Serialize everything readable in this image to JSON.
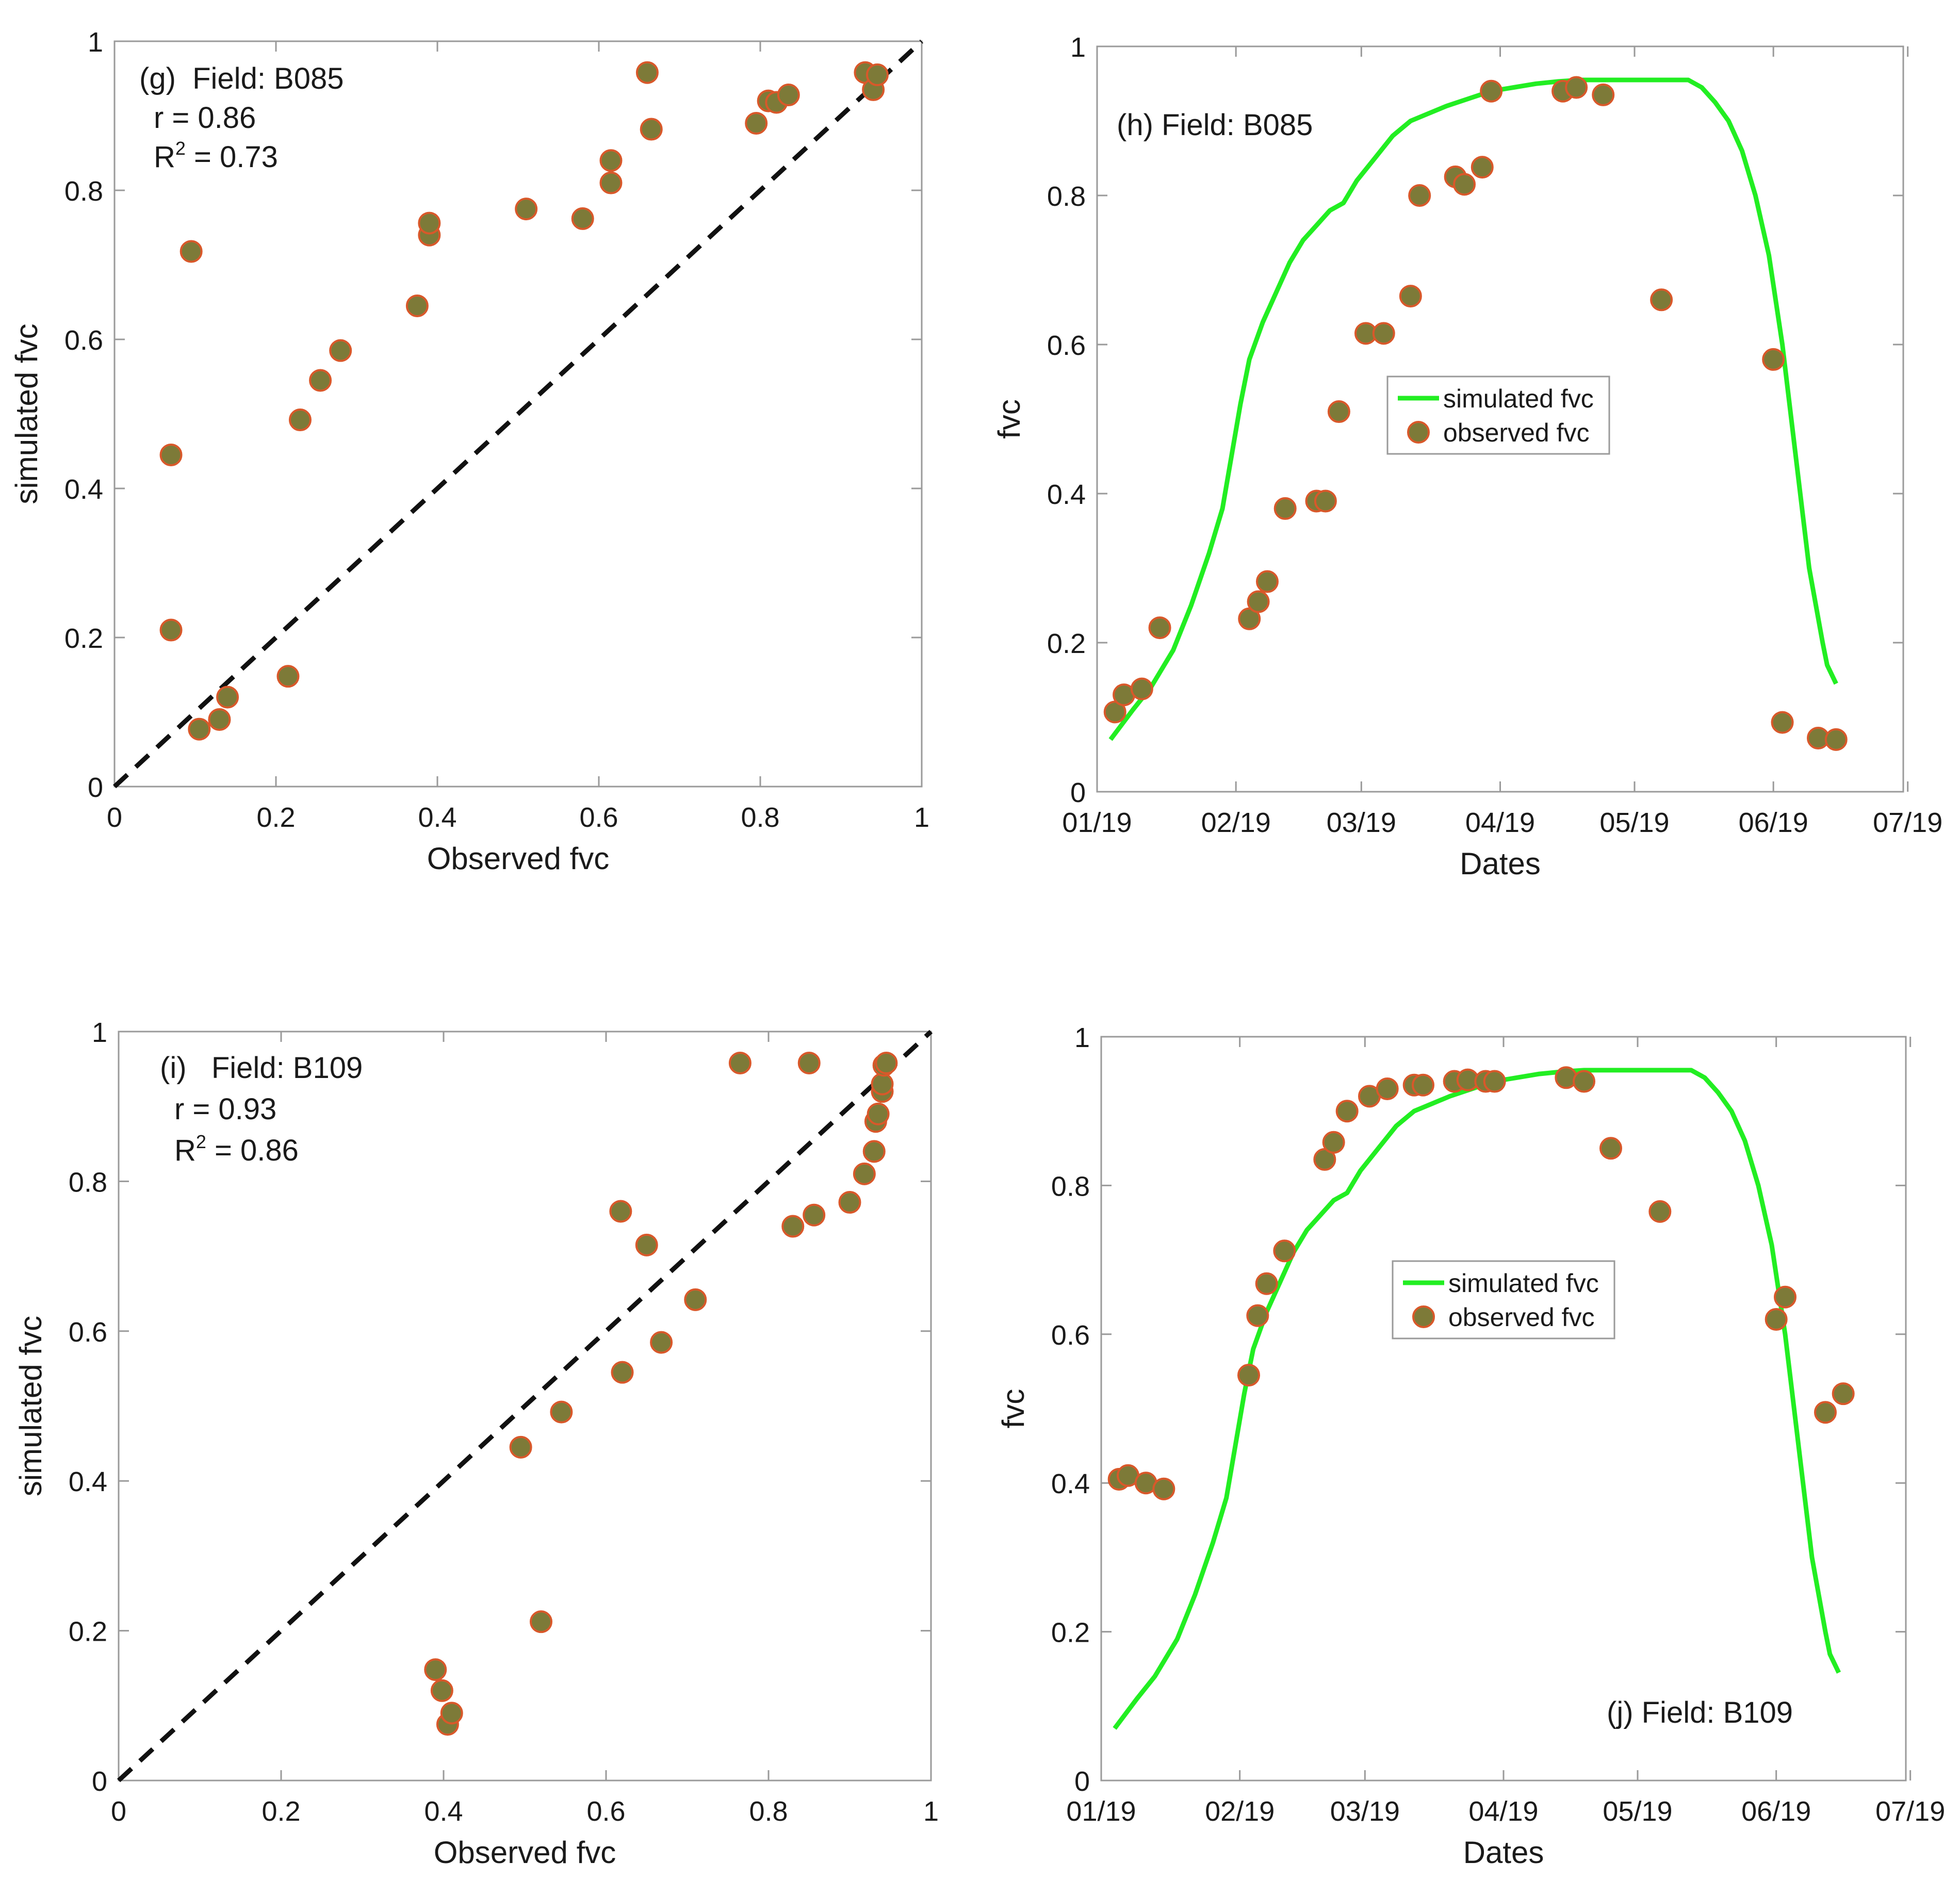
{
  "colors": {
    "marker_fill": "#7d7a38",
    "marker_edge": "#d9582a",
    "sim_line": "#22ee22",
    "one_to_one": "#111111",
    "axis": "#9a9a9a"
  },
  "chart_data": [
    {
      "id": "g",
      "type": "scatter",
      "annotation": {
        "panel_field": "(g)  Field: B085",
        "r_text": "r = 0.86",
        "r2_prefix": "R",
        "r2_sup": "2",
        "r2_value": " = 0.73"
      },
      "xlabel": "Observed fvc",
      "ylabel": "simulated fvc",
      "xlim": [
        0,
        1
      ],
      "ylim": [
        0,
        1
      ],
      "xticks": [
        0,
        0.2,
        0.4,
        0.6,
        0.8,
        1
      ],
      "xtick_labels": [
        "0",
        "0.2",
        "0.4",
        "0.6",
        "0.8",
        "1"
      ],
      "yticks": [
        0,
        0.2,
        0.4,
        0.6,
        0.8,
        1
      ],
      "ytick_labels": [
        "0",
        "0.2",
        "0.4",
        "0.6",
        "0.8",
        "1"
      ],
      "one_to_one_line": true,
      "points": [
        [
          0.07,
          0.21
        ],
        [
          0.07,
          0.445
        ],
        [
          0.095,
          0.718
        ],
        [
          0.105,
          0.077
        ],
        [
          0.13,
          0.09
        ],
        [
          0.14,
          0.12
        ],
        [
          0.215,
          0.148
        ],
        [
          0.23,
          0.492
        ],
        [
          0.255,
          0.545
        ],
        [
          0.28,
          0.585
        ],
        [
          0.375,
          0.645
        ],
        [
          0.39,
          0.74
        ],
        [
          0.39,
          0.756
        ],
        [
          0.51,
          0.775
        ],
        [
          0.58,
          0.762
        ],
        [
          0.615,
          0.81
        ],
        [
          0.615,
          0.84
        ],
        [
          0.66,
          0.958
        ],
        [
          0.665,
          0.882
        ],
        [
          0.795,
          0.89
        ],
        [
          0.81,
          0.92
        ],
        [
          0.82,
          0.918
        ],
        [
          0.835,
          0.928
        ],
        [
          0.93,
          0.958
        ],
        [
          0.94,
          0.935
        ],
        [
          0.945,
          0.955
        ]
      ]
    },
    {
      "id": "h",
      "type": "line",
      "annotation": {
        "panel_field": "(h) Field: B085"
      },
      "xlabel": "Dates",
      "ylabel": "fvc",
      "xlim": [
        0,
        180
      ],
      "ylim": [
        0,
        1
      ],
      "xticks": [
        0,
        31,
        59,
        90,
        120,
        151,
        181
      ],
      "xtick_labels": [
        "01/19",
        "02/19",
        "03/19",
        "04/19",
        "05/19",
        "06/19",
        "07/19"
      ],
      "yticks": [
        0,
        0.2,
        0.4,
        0.6,
        0.8,
        1
      ],
      "ytick_labels": [
        "0",
        "0.2",
        "0.4",
        "0.6",
        "0.8",
        "1"
      ],
      "legend": {
        "position": "center",
        "entries": [
          "simulated fvc",
          "observed fvc"
        ]
      },
      "series": [
        {
          "name": "simulated fvc",
          "kind": "line",
          "x": [
            3,
            8,
            12,
            17,
            21,
            25,
            28,
            30,
            32,
            34,
            37,
            40,
            43,
            46,
            49,
            52,
            55,
            58,
            62,
            66,
            70,
            74,
            78,
            83,
            88,
            93,
            98,
            103,
            108,
            113,
            118,
            123,
            128,
            132,
            135,
            138,
            141,
            144,
            147,
            150,
            153,
            156,
            159,
            162,
            163,
            165
          ],
          "y": [
            0.07,
            0.11,
            0.14,
            0.19,
            0.25,
            0.32,
            0.38,
            0.45,
            0.52,
            0.58,
            0.63,
            0.67,
            0.71,
            0.74,
            0.76,
            0.78,
            0.79,
            0.82,
            0.85,
            0.88,
            0.9,
            0.91,
            0.92,
            0.93,
            0.94,
            0.945,
            0.95,
            0.953,
            0.955,
            0.955,
            0.955,
            0.955,
            0.955,
            0.955,
            0.945,
            0.925,
            0.9,
            0.86,
            0.8,
            0.72,
            0.6,
            0.45,
            0.3,
            0.2,
            0.17,
            0.145
          ]
        },
        {
          "name": "observed fvc",
          "kind": "scatter",
          "x": [
            4,
            6,
            10,
            14,
            34,
            36,
            38,
            42,
            49,
            51,
            54,
            60,
            64,
            70,
            72,
            80,
            82,
            86,
            88,
            104,
            107,
            113,
            126,
            151,
            153,
            161,
            165
          ],
          "y": [
            0.107,
            0.13,
            0.138,
            0.22,
            0.232,
            0.255,
            0.282,
            0.38,
            0.39,
            0.39,
            0.51,
            0.615,
            0.615,
            0.665,
            0.8,
            0.825,
            0.815,
            0.838,
            0.94,
            0.94,
            0.945,
            0.935,
            0.66,
            0.58,
            0.093,
            0.072,
            0.07
          ]
        }
      ]
    },
    {
      "id": "i",
      "type": "scatter",
      "annotation": {
        "panel_field": "(i)   Field: B109",
        "r_text": "r = 0.93",
        "r2_prefix": "R",
        "r2_sup": "2",
        "r2_value": " = 0.86"
      },
      "xlabel": "Observed fvc",
      "ylabel": "simulated fvc",
      "xlim": [
        0,
        1
      ],
      "ylim": [
        0,
        1
      ],
      "xticks": [
        0,
        0.2,
        0.4,
        0.6,
        0.8,
        1
      ],
      "xtick_labels": [
        "0",
        "0.2",
        "0.4",
        "0.6",
        "0.8",
        "1"
      ],
      "yticks": [
        0,
        0.2,
        0.4,
        0.6,
        0.8,
        1
      ],
      "ytick_labels": [
        "0",
        "0.2",
        "0.4",
        "0.6",
        "0.8",
        "1"
      ],
      "one_to_one_line": true,
      "points": [
        [
          0.39,
          0.148
        ],
        [
          0.398,
          0.12
        ],
        [
          0.405,
          0.075
        ],
        [
          0.41,
          0.09
        ],
        [
          0.495,
          0.445
        ],
        [
          0.52,
          0.212
        ],
        [
          0.545,
          0.492
        ],
        [
          0.62,
          0.545
        ],
        [
          0.618,
          0.76
        ],
        [
          0.65,
          0.715
        ],
        [
          0.668,
          0.585
        ],
        [
          0.71,
          0.642
        ],
        [
          0.765,
          0.958
        ],
        [
          0.83,
          0.74
        ],
        [
          0.85,
          0.958
        ],
        [
          0.856,
          0.755
        ],
        [
          0.9,
          0.772
        ],
        [
          0.918,
          0.81
        ],
        [
          0.93,
          0.84
        ],
        [
          0.932,
          0.88
        ],
        [
          0.935,
          0.89
        ],
        [
          0.94,
          0.92
        ],
        [
          0.94,
          0.93
        ],
        [
          0.942,
          0.955
        ],
        [
          0.945,
          0.958
        ]
      ]
    },
    {
      "id": "j",
      "type": "line",
      "annotation": {
        "panel_field": "(j) Field: B109"
      },
      "xlabel": "Dates",
      "ylabel": "fvc",
      "xlim": [
        0,
        180
      ],
      "ylim": [
        0,
        1
      ],
      "xticks": [
        0,
        31,
        59,
        90,
        120,
        151,
        181
      ],
      "xtick_labels": [
        "01/19",
        "02/19",
        "03/19",
        "04/19",
        "05/19",
        "06/19",
        "07/19"
      ],
      "yticks": [
        0,
        0.2,
        0.4,
        0.6,
        0.8,
        1
      ],
      "ytick_labels": [
        "0",
        "0.2",
        "0.4",
        "0.6",
        "0.8",
        "1"
      ],
      "legend": {
        "position": "center",
        "entries": [
          "simulated fvc",
          "observed fvc"
        ]
      },
      "series": [
        {
          "name": "simulated fvc",
          "kind": "line",
          "x": [
            3,
            8,
            12,
            17,
            21,
            25,
            28,
            30,
            32,
            34,
            37,
            40,
            43,
            46,
            49,
            52,
            55,
            58,
            62,
            66,
            70,
            74,
            78,
            83,
            88,
            93,
            98,
            103,
            108,
            113,
            118,
            123,
            128,
            132,
            135,
            138,
            141,
            144,
            147,
            150,
            153,
            156,
            159,
            162,
            163,
            165
          ],
          "y": [
            0.07,
            0.11,
            0.14,
            0.19,
            0.25,
            0.32,
            0.38,
            0.45,
            0.52,
            0.58,
            0.63,
            0.67,
            0.71,
            0.74,
            0.76,
            0.78,
            0.79,
            0.82,
            0.85,
            0.88,
            0.9,
            0.91,
            0.92,
            0.93,
            0.94,
            0.945,
            0.95,
            0.953,
            0.955,
            0.955,
            0.955,
            0.955,
            0.955,
            0.955,
            0.945,
            0.925,
            0.9,
            0.86,
            0.8,
            0.72,
            0.6,
            0.45,
            0.3,
            0.2,
            0.17,
            0.145
          ]
        },
        {
          "name": "observed fvc",
          "kind": "scatter",
          "x": [
            4,
            6,
            10,
            14,
            33,
            35,
            37,
            41,
            50,
            52,
            55,
            60,
            64,
            70,
            72,
            79,
            82,
            86,
            88,
            104,
            108,
            114,
            125,
            151,
            153,
            162,
            166
          ],
          "y": [
            0.405,
            0.41,
            0.4,
            0.392,
            0.545,
            0.625,
            0.668,
            0.712,
            0.835,
            0.858,
            0.9,
            0.92,
            0.93,
            0.935,
            0.935,
            0.94,
            0.942,
            0.94,
            0.94,
            0.945,
            0.94,
            0.85,
            0.765,
            0.62,
            0.65,
            0.495,
            0.52
          ]
        }
      ]
    }
  ]
}
